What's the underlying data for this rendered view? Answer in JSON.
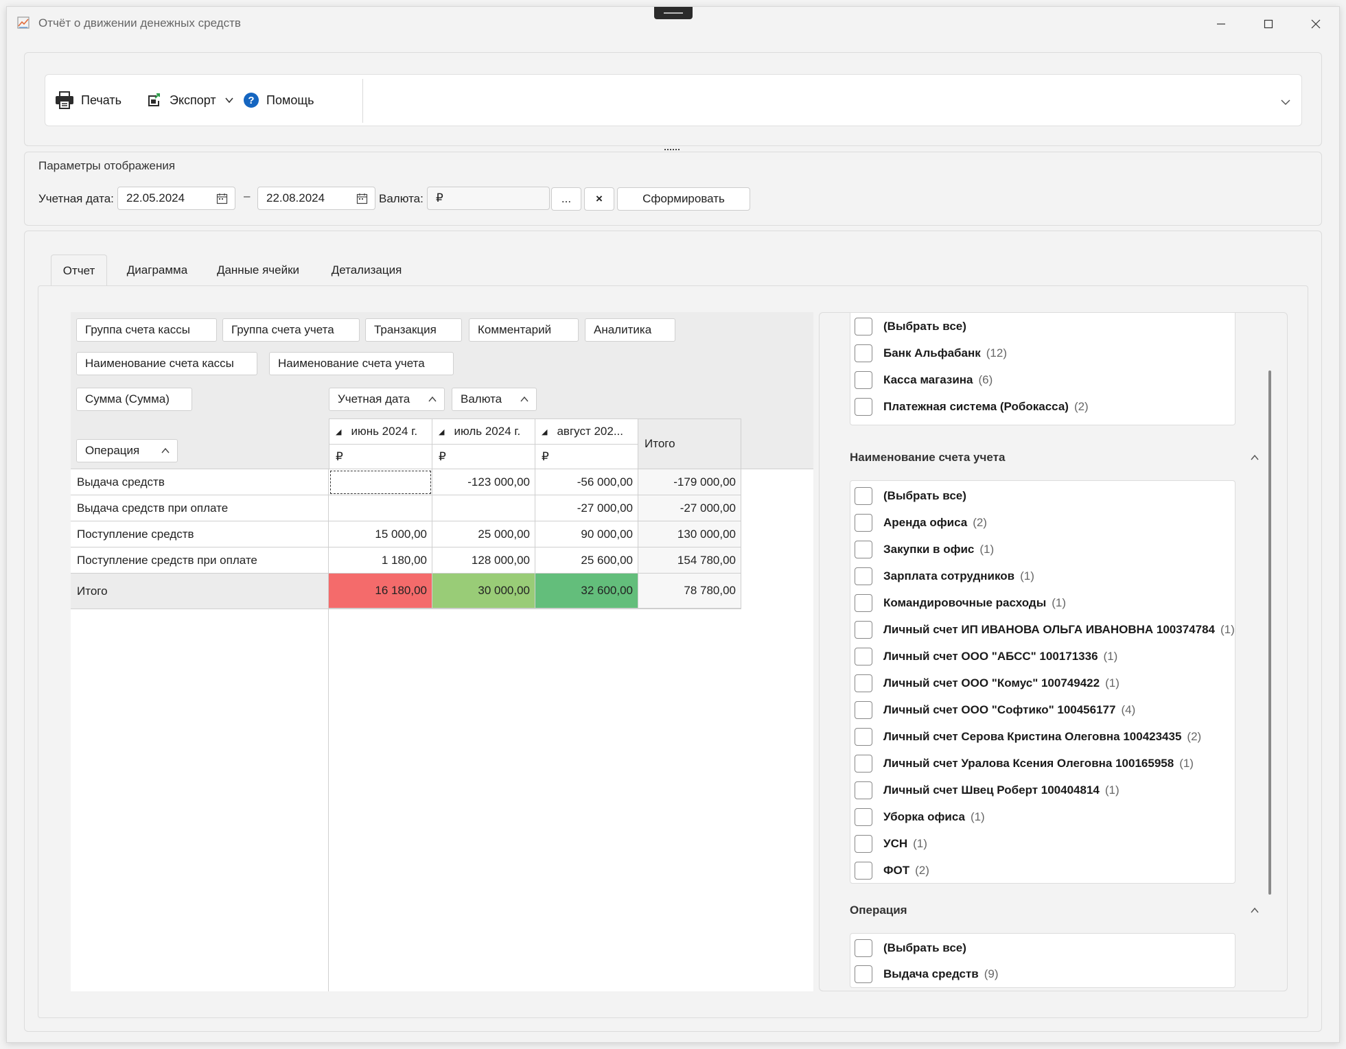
{
  "window": {
    "title": "Отчёт о движении денежных средств"
  },
  "toolbar": {
    "print": "Печать",
    "export": "Экспорт",
    "help": "Помощь"
  },
  "params": {
    "header": "Параметры отображения",
    "date_label": "Учетная дата:",
    "date_from": "22.05.2024",
    "date_sep": "–",
    "date_to": "22.08.2024",
    "currency_label": "Валюта:",
    "currency_value": "₽",
    "browse_label": "...",
    "clear_label": "×",
    "generate_label": "Сформировать"
  },
  "tabs": [
    "Отчет",
    "Диаграмма",
    "Данные ячейки",
    "Детализация"
  ],
  "pivot": {
    "filter_fields": [
      "Группа счета кассы",
      "Группа счета учета",
      "Транзакция",
      "Комментарий",
      "Аналитика",
      "Наименование счета кассы",
      "Наименование счета учета"
    ],
    "data_field": "Сумма (Сумма)",
    "column_fields": [
      "Учетная дата",
      "Валюта"
    ],
    "row_field": "Операция",
    "columns": [
      {
        "label": "июнь 2024 г.",
        "currency": "₽"
      },
      {
        "label": "июль 2024 г.",
        "currency": "₽"
      },
      {
        "label": "август 202...",
        "currency": "₽"
      }
    ],
    "total_col": "Итого",
    "rows": [
      {
        "label": "Выдача средств",
        "values": [
          "",
          "-123 000,00",
          "-56 000,00"
        ],
        "total": "-179 000,00"
      },
      {
        "label": "Выдача средств при оплате",
        "values": [
          "",
          "",
          "-27 000,00"
        ],
        "total": "-27 000,00"
      },
      {
        "label": "Поступление средств",
        "values": [
          "15 000,00",
          "25 000,00",
          "90 000,00"
        ],
        "total": "130 000,00"
      },
      {
        "label": "Поступление средств при оплате",
        "values": [
          "1 180,00",
          "128 000,00",
          "25 600,00"
        ],
        "total": "154 780,00"
      }
    ],
    "grand_total": {
      "label": "Итого",
      "values": [
        "16 180,00",
        "30 000,00",
        "32 600,00"
      ],
      "total": "78 780,00"
    },
    "total_colors": [
      "#f46b6b",
      "#99cc77",
      "#63be7b"
    ]
  },
  "filters": {
    "group1": {
      "items": [
        {
          "label": "(Выбрать все)",
          "count": ""
        },
        {
          "label": "Банк Альфабанк",
          "count": "(12)"
        },
        {
          "label": "Касса магазина",
          "count": "(6)"
        },
        {
          "label": "Платежная система (Робокасса)",
          "count": "(2)"
        }
      ]
    },
    "group2": {
      "title": "Наименование счета учета",
      "items": [
        {
          "label": "(Выбрать все)",
          "count": ""
        },
        {
          "label": "Аренда офиса",
          "count": "(2)"
        },
        {
          "label": "Закупки в офис",
          "count": "(1)"
        },
        {
          "label": "Зарплата сотрудников",
          "count": "(1)"
        },
        {
          "label": "Командировочные расходы",
          "count": "(1)"
        },
        {
          "label": "Личный счет ИП ИВАНОВА ОЛЬГА ИВАНОВНА 100374784",
          "count": "(1)"
        },
        {
          "label": "Личный счет ООО \"АБСС\" 100171336",
          "count": "(1)"
        },
        {
          "label": "Личный счет ООО \"Комус\" 100749422",
          "count": "(1)"
        },
        {
          "label": "Личный счет ООО \"Софтико\" 100456177",
          "count": "(4)"
        },
        {
          "label": "Личный счет Серова Кристина Олеговна 100423435",
          "count": "(2)"
        },
        {
          "label": "Личный счет Уралова Ксения Олеговна 100165958",
          "count": "(1)"
        },
        {
          "label": "Личный счет Швец Роберт 100404814",
          "count": "(1)"
        },
        {
          "label": "Уборка офиса",
          "count": "(1)"
        },
        {
          "label": "УСН",
          "count": "(1)"
        },
        {
          "label": "ФОТ",
          "count": "(2)"
        }
      ]
    },
    "group3": {
      "title": "Операция",
      "items": [
        {
          "label": "(Выбрать все)",
          "count": ""
        },
        {
          "label": "Выдача средств",
          "count": "(9)"
        }
      ]
    }
  }
}
